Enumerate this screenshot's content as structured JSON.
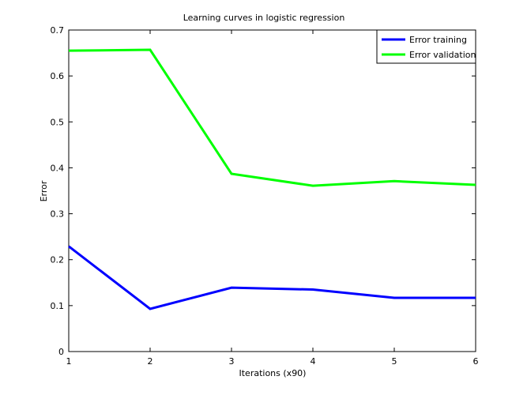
{
  "chart_data": {
    "type": "line",
    "title": "Learning curves in logistic regression",
    "xlabel": "Iterations (x90)",
    "ylabel": "Error",
    "x": [
      1,
      2,
      3,
      4,
      5,
      6
    ],
    "xlim": [
      1,
      6
    ],
    "ylim": [
      0,
      0.7
    ],
    "xticks": [
      "1",
      "2",
      "3",
      "4",
      "5",
      "6"
    ],
    "yticks": [
      "0",
      "0.1",
      "0.2",
      "0.3",
      "0.4",
      "0.5",
      "0.6",
      "0.7"
    ],
    "grid": false,
    "legend_position": "top-right",
    "series": [
      {
        "name": "Error training",
        "color": "#0000ff",
        "values": [
          0.229,
          0.093,
          0.139,
          0.135,
          0.117,
          0.117
        ]
      },
      {
        "name": "Error validation",
        "color": "#00ff00",
        "values": [
          0.655,
          0.657,
          0.387,
          0.361,
          0.371,
          0.363
        ]
      }
    ]
  }
}
